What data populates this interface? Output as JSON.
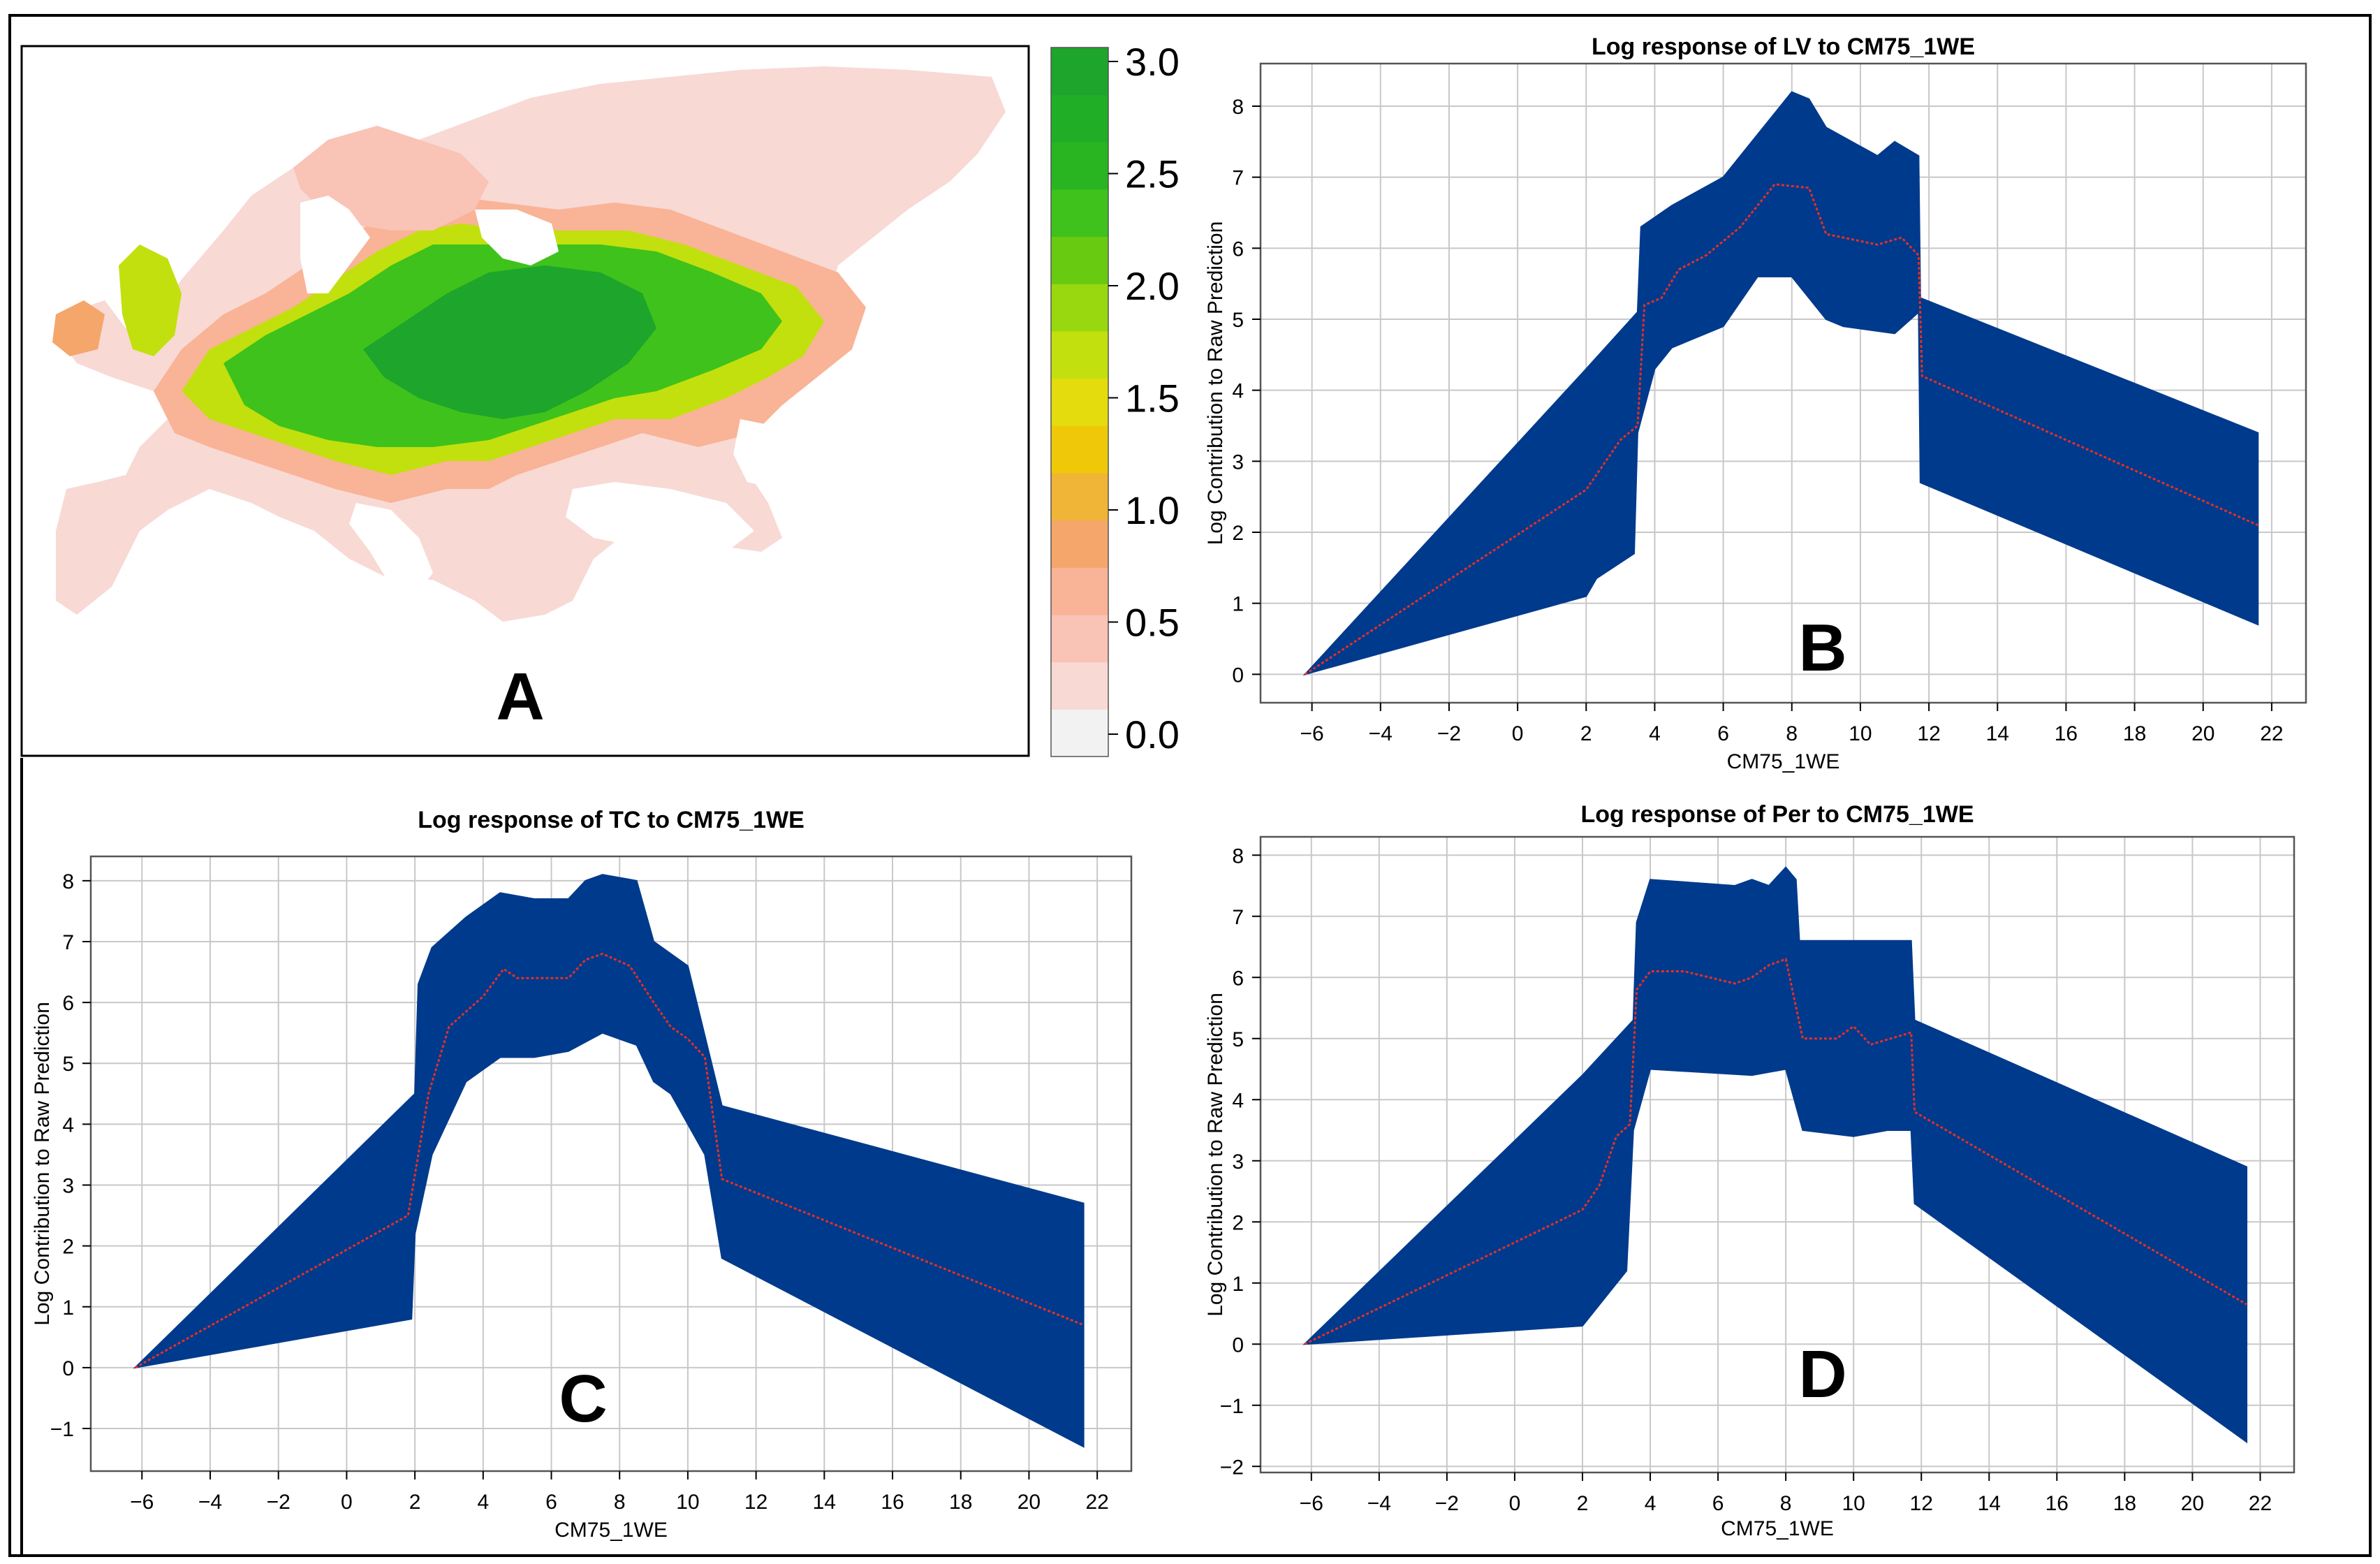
{
  "panel_a": {
    "letter": "A",
    "map_description_hidden": "",
    "colorbar": {
      "ticks": [
        "3.0",
        "2.5",
        "2.0",
        "1.5",
        "1.0",
        "0.5",
        "0.0"
      ],
      "min": 0,
      "max": 3,
      "colors": [
        "#f2f2f2",
        "#f8d9d4",
        "#f9c3b6",
        "#f9b396",
        "#f5a66b",
        "#f0b436",
        "#efc80a",
        "#e5dc0e",
        "#c2e00d",
        "#99d80f",
        "#69ca12",
        "#3fc21b",
        "#28b521",
        "#20ae27",
        "#1ea52b"
      ]
    }
  },
  "chart_data": [
    {
      "id": "B",
      "type": "area",
      "letter": "B",
      "title": "Log response of LV to CM75_1WE",
      "xlabel": "CM75_1WE",
      "ylabel": "Log Contribution to Raw Prediction",
      "xlim": [
        -7.5,
        23
      ],
      "ylim": [
        -0.4,
        8.6
      ],
      "xticks": [
        -6,
        -4,
        -2,
        0,
        2,
        4,
        6,
        8,
        10,
        12,
        14,
        16,
        18,
        20,
        22
      ],
      "yticks": [
        0,
        1,
        2,
        3,
        4,
        5,
        6,
        7,
        8
      ],
      "band_color": "#003a8c",
      "line_color": "#e0302a",
      "series": [
        {
          "name": "upper",
          "x": [
            -6.2,
            2,
            3.5,
            3.6,
            4.5,
            6,
            6.5,
            7.0,
            8.0,
            8.5,
            9.0,
            10.5,
            11.0,
            11.7,
            11.75,
            21.6
          ],
          "y": [
            0,
            4.3,
            5.1,
            6.3,
            6.6,
            7.0,
            7.3,
            7.6,
            8.2,
            8.1,
            7.7,
            7.3,
            7.5,
            7.3,
            5.3,
            3.4
          ]
        },
        {
          "name": "mean",
          "x": [
            -6.2,
            2.0,
            2.5,
            3.0,
            3.5,
            3.7,
            4.2,
            4.7,
            5.5,
            6.5,
            7.0,
            7.5,
            8.5,
            9.0,
            10.5,
            11.2,
            11.7,
            11.8,
            21.6
          ],
          "y": [
            0,
            2.6,
            2.95,
            3.3,
            3.5,
            5.2,
            5.3,
            5.7,
            5.9,
            6.3,
            6.6,
            6.9,
            6.85,
            6.2,
            6.05,
            6.15,
            5.9,
            4.2,
            2.1
          ]
        },
        {
          "name": "lower",
          "x": [
            -6.2,
            2,
            2.3,
            3.4,
            3.5,
            4.0,
            4.5,
            6.0,
            7.0,
            8.0,
            9.0,
            9.5,
            11.0,
            11.7,
            11.75,
            21.6
          ],
          "y": [
            0,
            1.1,
            1.35,
            1.7,
            3.4,
            4.3,
            4.6,
            4.9,
            5.6,
            5.6,
            5.0,
            4.9,
            4.8,
            5.1,
            2.7,
            0.7
          ]
        }
      ]
    },
    {
      "id": "C",
      "type": "area",
      "letter": "C",
      "title": "Log response of TC to CM75_1WE",
      "xlabel": "CM75_1WE",
      "ylabel": "Log Contribution to Raw Prediction",
      "xlim": [
        -7.5,
        23
      ],
      "ylim": [
        -1.7,
        8.4
      ],
      "xticks": [
        -6,
        -4,
        -2,
        0,
        2,
        4,
        6,
        8,
        10,
        12,
        14,
        16,
        18,
        20,
        22
      ],
      "yticks": [
        -1,
        0,
        1,
        2,
        3,
        4,
        5,
        6,
        7,
        8
      ],
      "band_color": "#003a8c",
      "line_color": "#e0302a",
      "series": [
        {
          "name": "upper",
          "x": [
            -6.2,
            2.0,
            2.1,
            2.5,
            3.5,
            4.5,
            5.5,
            6.5,
            7.0,
            7.5,
            8.5,
            9.0,
            9.5,
            10.0,
            11.0,
            21.6
          ],
          "y": [
            0,
            4.5,
            6.3,
            6.9,
            7.4,
            7.8,
            7.7,
            7.7,
            8.0,
            8.1,
            8.0,
            7.0,
            6.8,
            6.6,
            4.3,
            2.7
          ]
        },
        {
          "name": "mean",
          "x": [
            -6.2,
            1.8,
            2.1,
            2.4,
            3.0,
            4.0,
            4.6,
            5.0,
            6.5,
            7.0,
            7.5,
            8.3,
            9.0,
            9.5,
            10.0,
            10.5,
            11.0,
            21.6
          ],
          "y": [
            0,
            2.5,
            3.5,
            4.5,
            5.6,
            6.1,
            6.55,
            6.4,
            6.4,
            6.7,
            6.8,
            6.6,
            6.0,
            5.6,
            5.4,
            5.1,
            3.1,
            0.7
          ]
        },
        {
          "name": "lower",
          "x": [
            -6.2,
            1.9,
            2.0,
            2.5,
            3.5,
            4.5,
            5.5,
            6.5,
            7.5,
            8.5,
            9.0,
            9.5,
            10.5,
            11.0,
            21.6
          ],
          "y": [
            0,
            0.8,
            2.2,
            3.5,
            4.7,
            5.1,
            5.1,
            5.2,
            5.5,
            5.3,
            4.7,
            4.5,
            3.5,
            1.8,
            -1.3
          ]
        }
      ]
    },
    {
      "id": "D",
      "type": "area",
      "letter": "D",
      "title": "Log response of Per to CM75_1WE",
      "xlabel": "CM75_1WE",
      "ylabel": "Log Contribution to Raw Prediction",
      "xlim": [
        -7.5,
        23
      ],
      "ylim": [
        -2.1,
        8.3
      ],
      "xticks": [
        -6,
        -4,
        -2,
        0,
        2,
        4,
        6,
        8,
        10,
        12,
        14,
        16,
        18,
        20,
        22
      ],
      "yticks": [
        -2,
        -1,
        0,
        1,
        2,
        3,
        4,
        5,
        6,
        7,
        8
      ],
      "band_color": "#003a8c",
      "line_color": "#e0302a",
      "series": [
        {
          "name": "upper",
          "x": [
            -6.2,
            2.0,
            3.5,
            3.6,
            4.0,
            6.5,
            7.0,
            7.5,
            8.0,
            8.3,
            8.4,
            11.7,
            11.8,
            21.6
          ],
          "y": [
            0,
            4.4,
            5.3,
            6.9,
            7.6,
            7.5,
            7.6,
            7.5,
            7.8,
            7.6,
            6.6,
            6.6,
            5.3,
            2.9
          ]
        },
        {
          "name": "mean",
          "x": [
            -6.2,
            2.0,
            2.5,
            3.0,
            3.4,
            3.6,
            4.0,
            5.0,
            6.5,
            7.0,
            7.5,
            8.0,
            8.5,
            9.5,
            10.0,
            10.5,
            11.7,
            11.8,
            21.6
          ],
          "y": [
            0,
            2.2,
            2.6,
            3.4,
            3.6,
            5.8,
            6.1,
            6.1,
            5.9,
            6.0,
            6.2,
            6.3,
            5.0,
            5.0,
            5.2,
            4.9,
            5.1,
            3.8,
            0.65
          ]
        },
        {
          "name": "lower",
          "x": [
            -6.2,
            2.0,
            3.3,
            3.5,
            4.0,
            7.0,
            8.0,
            8.5,
            10.0,
            11.0,
            11.7,
            11.8,
            21.6
          ],
          "y": [
            0,
            0.3,
            1.2,
            3.5,
            4.5,
            4.4,
            4.5,
            3.5,
            3.4,
            3.5,
            3.5,
            2.3,
            -1.6
          ]
        }
      ]
    }
  ]
}
